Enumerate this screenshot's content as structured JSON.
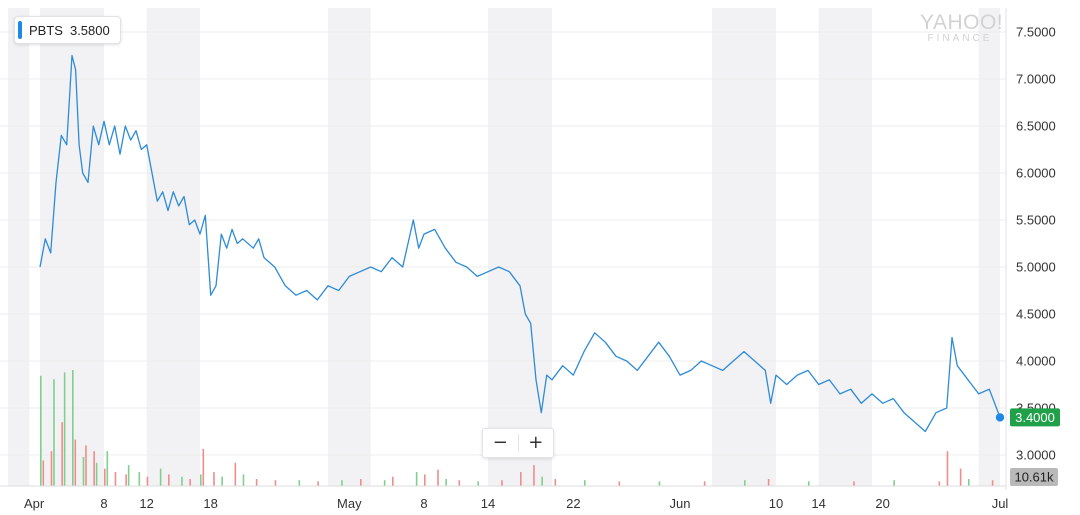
{
  "ticker": {
    "symbol": "PBTS",
    "value": "3.5800"
  },
  "watermark": {
    "line1": "YAHOO!",
    "line2": "FINANCE"
  },
  "zoom": {
    "minus": "−",
    "plus": "+"
  },
  "colors": {
    "line": "#2e8bd6",
    "volume_up": "#7fcf8f",
    "volume_down": "#ef8c8c",
    "current_badge": "#21a04a",
    "volume_badge": "#b9b9b9",
    "shade": "#f2f2f4"
  },
  "chart_data": {
    "type": "line",
    "y_ticks": [
      "7.5000",
      "7.0000",
      "6.5000",
      "6.0000",
      "5.5000",
      "5.0000",
      "4.5000",
      "4.0000",
      "3.5000",
      "3.0000"
    ],
    "ylim": [
      2.7,
      7.7
    ],
    "x_ticks": [
      {
        "label": "Apr",
        "date": "2018-04-02"
      },
      {
        "label": "8",
        "date": "2018-04-08"
      },
      {
        "label": "12",
        "date": "2018-04-12"
      },
      {
        "label": "18",
        "date": "2018-04-18"
      },
      {
        "label": "May",
        "date": "2018-05-01"
      },
      {
        "label": "8",
        "date": "2018-05-08"
      },
      {
        "label": "14",
        "date": "2018-05-14"
      },
      {
        "label": "22",
        "date": "2018-05-22"
      },
      {
        "label": "Jun",
        "date": "2018-06-01"
      },
      {
        "label": "10",
        "date": "2018-06-10"
      },
      {
        "label": "14",
        "date": "2018-06-14"
      },
      {
        "label": "20",
        "date": "2018-06-20"
      },
      {
        "label": "Jul",
        "date": "2018-07-01"
      }
    ],
    "xlim": [
      "2018-03-30",
      "2018-07-01"
    ],
    "shaded_ranges": [
      [
        "2018-03-30",
        "2018-04-01"
      ],
      [
        "2018-04-02",
        "2018-04-08"
      ],
      [
        "2018-04-12",
        "2018-04-17"
      ],
      [
        "2018-04-29",
        "2018-05-03"
      ],
      [
        "2018-05-14",
        "2018-05-20"
      ],
      [
        "2018-06-04",
        "2018-06-10"
      ],
      [
        "2018-06-14",
        "2018-06-19"
      ],
      [
        "2018-06-29",
        "2018-07-01"
      ]
    ],
    "current_value": "3.4000",
    "volume_label": "10.61k",
    "series": [
      {
        "points": [
          [
            "2018-04-02",
            5.0
          ],
          [
            "2018-04-02",
            5.3
          ],
          [
            "2018-04-03",
            5.15
          ],
          [
            "2018-04-03",
            5.9
          ],
          [
            "2018-04-04",
            6.4
          ],
          [
            "2018-04-04",
            6.3
          ],
          [
            "2018-04-05",
            7.25
          ],
          [
            "2018-04-05",
            7.1
          ],
          [
            "2018-04-05",
            6.3
          ],
          [
            "2018-04-06",
            6.0
          ],
          [
            "2018-04-06",
            5.9
          ],
          [
            "2018-04-07",
            6.5
          ],
          [
            "2018-04-07",
            6.3
          ],
          [
            "2018-04-08",
            6.55
          ],
          [
            "2018-04-08",
            6.3
          ],
          [
            "2018-04-09",
            6.5
          ],
          [
            "2018-04-09",
            6.2
          ],
          [
            "2018-04-10",
            6.5
          ],
          [
            "2018-04-10",
            6.35
          ],
          [
            "2018-04-11",
            6.45
          ],
          [
            "2018-04-11",
            6.25
          ],
          [
            "2018-04-12",
            6.3
          ],
          [
            "2018-04-12",
            6.0
          ],
          [
            "2018-04-13",
            5.7
          ],
          [
            "2018-04-13",
            5.8
          ],
          [
            "2018-04-14",
            5.6
          ],
          [
            "2018-04-14",
            5.8
          ],
          [
            "2018-04-15",
            5.65
          ],
          [
            "2018-04-15",
            5.75
          ],
          [
            "2018-04-16",
            5.45
          ],
          [
            "2018-04-16",
            5.5
          ],
          [
            "2018-04-17",
            5.35
          ],
          [
            "2018-04-17",
            5.55
          ],
          [
            "2018-04-18",
            4.7
          ],
          [
            "2018-04-18",
            4.8
          ],
          [
            "2018-04-19",
            5.35
          ],
          [
            "2018-04-19",
            5.2
          ],
          [
            "2018-04-20",
            5.4
          ],
          [
            "2018-04-20",
            5.25
          ],
          [
            "2018-04-21",
            5.3
          ],
          [
            "2018-04-22",
            5.2
          ],
          [
            "2018-04-22",
            5.3
          ],
          [
            "2018-04-23",
            5.1
          ],
          [
            "2018-04-24",
            5.0
          ],
          [
            "2018-04-24",
            4.9
          ],
          [
            "2018-04-25",
            4.8
          ],
          [
            "2018-04-26",
            4.7
          ],
          [
            "2018-04-27",
            4.75
          ],
          [
            "2018-04-28",
            4.65
          ],
          [
            "2018-04-29",
            4.8
          ],
          [
            "2018-04-30",
            4.75
          ],
          [
            "2018-05-01",
            4.9
          ],
          [
            "2018-05-02",
            4.95
          ],
          [
            "2018-05-03",
            5.0
          ],
          [
            "2018-05-04",
            4.95
          ],
          [
            "2018-05-05",
            5.1
          ],
          [
            "2018-05-06",
            5.0
          ],
          [
            "2018-05-07",
            5.5
          ],
          [
            "2018-05-07",
            5.2
          ],
          [
            "2018-05-08",
            5.35
          ],
          [
            "2018-05-09",
            5.4
          ],
          [
            "2018-05-10",
            5.2
          ],
          [
            "2018-05-11",
            5.05
          ],
          [
            "2018-05-12",
            5.0
          ],
          [
            "2018-05-13",
            4.9
          ],
          [
            "2018-05-14",
            4.95
          ],
          [
            "2018-05-15",
            5.0
          ],
          [
            "2018-05-16",
            4.95
          ],
          [
            "2018-05-17",
            4.8
          ],
          [
            "2018-05-17",
            4.5
          ],
          [
            "2018-05-18",
            4.4
          ],
          [
            "2018-05-18",
            3.8
          ],
          [
            "2018-05-19",
            3.45
          ],
          [
            "2018-05-19",
            3.85
          ],
          [
            "2018-05-20",
            3.8
          ],
          [
            "2018-05-21",
            3.95
          ],
          [
            "2018-05-22",
            3.85
          ],
          [
            "2018-05-23",
            4.1
          ],
          [
            "2018-05-24",
            4.3
          ],
          [
            "2018-05-25",
            4.2
          ],
          [
            "2018-05-26",
            4.05
          ],
          [
            "2018-05-27",
            4.0
          ],
          [
            "2018-05-28",
            3.9
          ],
          [
            "2018-05-29",
            4.05
          ],
          [
            "2018-05-30",
            4.2
          ],
          [
            "2018-05-31",
            4.05
          ],
          [
            "2018-06-01",
            3.85
          ],
          [
            "2018-06-02",
            3.9
          ],
          [
            "2018-06-03",
            4.0
          ],
          [
            "2018-06-04",
            3.95
          ],
          [
            "2018-06-05",
            3.9
          ],
          [
            "2018-06-06",
            4.0
          ],
          [
            "2018-06-07",
            4.1
          ],
          [
            "2018-06-08",
            4.0
          ],
          [
            "2018-06-09",
            3.9
          ],
          [
            "2018-06-09",
            3.55
          ],
          [
            "2018-06-10",
            3.85
          ],
          [
            "2018-06-11",
            3.75
          ],
          [
            "2018-06-12",
            3.85
          ],
          [
            "2018-06-13",
            3.9
          ],
          [
            "2018-06-14",
            3.75
          ],
          [
            "2018-06-15",
            3.8
          ],
          [
            "2018-06-16",
            3.65
          ],
          [
            "2018-06-17",
            3.7
          ],
          [
            "2018-06-18",
            3.55
          ],
          [
            "2018-06-19",
            3.65
          ],
          [
            "2018-06-20",
            3.55
          ],
          [
            "2018-06-21",
            3.6
          ],
          [
            "2018-06-22",
            3.45
          ],
          [
            "2018-06-23",
            3.35
          ],
          [
            "2018-06-24",
            3.25
          ],
          [
            "2018-06-25",
            3.45
          ],
          [
            "2018-06-26",
            3.5
          ],
          [
            "2018-06-26",
            4.25
          ],
          [
            "2018-06-27",
            3.95
          ],
          [
            "2018-06-28",
            3.8
          ],
          [
            "2018-06-29",
            3.65
          ],
          [
            "2018-06-30",
            3.7
          ],
          [
            "2018-07-01",
            3.4
          ]
        ]
      }
    ],
    "volume_bars": [
      [
        "2018-04-02",
        0.95,
        "up"
      ],
      [
        "2018-04-02",
        0.22,
        "down"
      ],
      [
        "2018-04-03",
        0.3,
        "down"
      ],
      [
        "2018-04-03",
        0.92,
        "up"
      ],
      [
        "2018-04-04",
        0.55,
        "down"
      ],
      [
        "2018-04-04",
        0.98,
        "up"
      ],
      [
        "2018-04-05",
        1.0,
        "up"
      ],
      [
        "2018-04-05",
        0.4,
        "down"
      ],
      [
        "2018-04-06",
        0.25,
        "up"
      ],
      [
        "2018-04-06",
        0.35,
        "down"
      ],
      [
        "2018-04-07",
        0.3,
        "down"
      ],
      [
        "2018-04-07",
        0.2,
        "up"
      ],
      [
        "2018-04-08",
        0.15,
        "down"
      ],
      [
        "2018-04-08",
        0.3,
        "up"
      ],
      [
        "2018-04-09",
        0.12,
        "down"
      ],
      [
        "2018-04-10",
        0.18,
        "up"
      ],
      [
        "2018-04-10",
        0.1,
        "down"
      ],
      [
        "2018-04-11",
        0.12,
        "up"
      ],
      [
        "2018-04-12",
        0.08,
        "down"
      ],
      [
        "2018-04-13",
        0.15,
        "up"
      ],
      [
        "2018-04-14",
        0.1,
        "down"
      ],
      [
        "2018-04-15",
        0.08,
        "up"
      ],
      [
        "2018-04-16",
        0.06,
        "down"
      ],
      [
        "2018-04-17",
        0.32,
        "down"
      ],
      [
        "2018-04-17",
        0.1,
        "up"
      ],
      [
        "2018-04-18",
        0.12,
        "down"
      ],
      [
        "2018-04-19",
        0.08,
        "up"
      ],
      [
        "2018-04-20",
        0.2,
        "down"
      ],
      [
        "2018-04-21",
        0.1,
        "up"
      ],
      [
        "2018-04-22",
        0.06,
        "down"
      ],
      [
        "2018-04-24",
        0.05,
        "down"
      ],
      [
        "2018-04-26",
        0.05,
        "up"
      ],
      [
        "2018-04-28",
        0.04,
        "down"
      ],
      [
        "2018-04-30",
        0.05,
        "up"
      ],
      [
        "2018-05-02",
        0.06,
        "down"
      ],
      [
        "2018-05-04",
        0.05,
        "up"
      ],
      [
        "2018-05-05",
        0.08,
        "down"
      ],
      [
        "2018-05-07",
        0.12,
        "up"
      ],
      [
        "2018-05-08",
        0.1,
        "down"
      ],
      [
        "2018-05-09",
        0.14,
        "down"
      ],
      [
        "2018-05-10",
        0.06,
        "up"
      ],
      [
        "2018-05-11",
        0.05,
        "down"
      ],
      [
        "2018-05-13",
        0.04,
        "up"
      ],
      [
        "2018-05-15",
        0.05,
        "down"
      ],
      [
        "2018-05-17",
        0.12,
        "down"
      ],
      [
        "2018-05-18",
        0.18,
        "down"
      ],
      [
        "2018-05-19",
        0.08,
        "up"
      ],
      [
        "2018-05-20",
        0.06,
        "down"
      ],
      [
        "2018-05-23",
        0.05,
        "up"
      ],
      [
        "2018-05-26",
        0.04,
        "down"
      ],
      [
        "2018-05-30",
        0.04,
        "up"
      ],
      [
        "2018-06-03",
        0.04,
        "down"
      ],
      [
        "2018-06-07",
        0.05,
        "up"
      ],
      [
        "2018-06-09",
        0.06,
        "down"
      ],
      [
        "2018-06-13",
        0.04,
        "up"
      ],
      [
        "2018-06-17",
        0.04,
        "down"
      ],
      [
        "2018-06-21",
        0.05,
        "up"
      ],
      [
        "2018-06-25",
        0.04,
        "down"
      ],
      [
        "2018-06-26",
        0.3,
        "down"
      ],
      [
        "2018-06-27",
        0.15,
        "down"
      ],
      [
        "2018-06-28",
        0.06,
        "up"
      ],
      [
        "2018-06-30",
        0.05,
        "down"
      ]
    ]
  }
}
